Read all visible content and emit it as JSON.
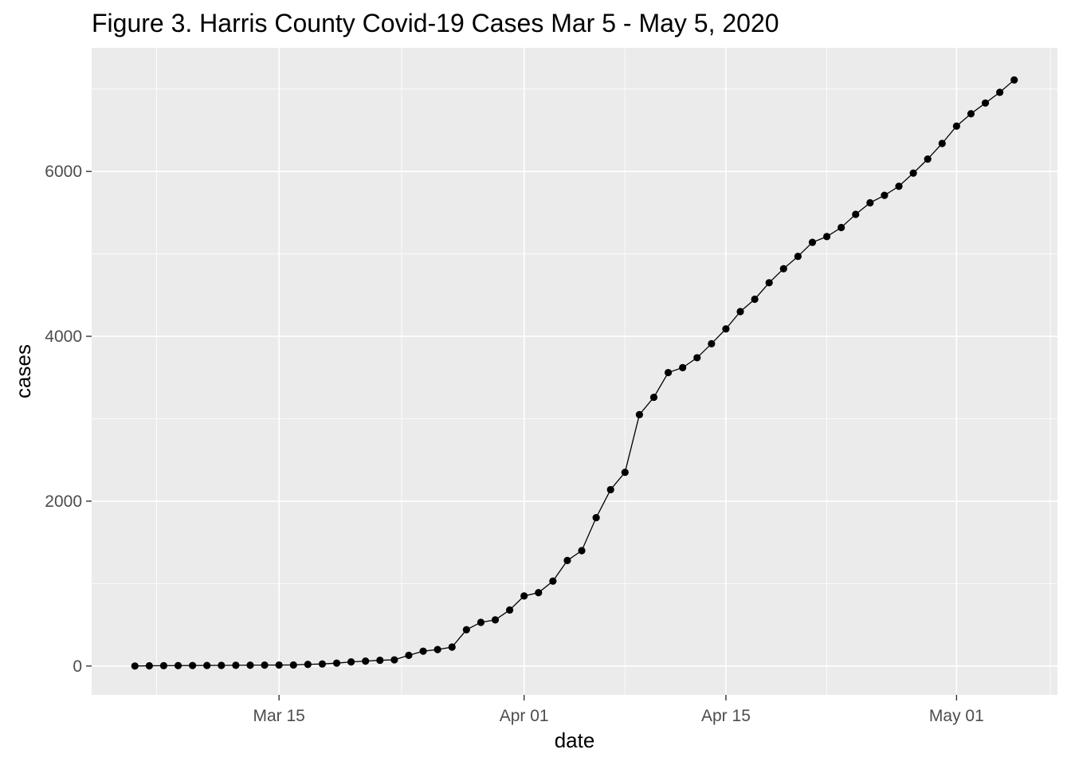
{
  "chart_data": {
    "type": "line",
    "title": "Figure 3. Harris County Covid-19 Cases Mar 5 - May 5, 2020",
    "xlabel": "date",
    "ylabel": "cases",
    "x_start_label": "2020-03-05",
    "x_tick_labels": [
      {
        "label": "Mar 15",
        "day": 10
      },
      {
        "label": "Apr 01",
        "day": 27
      },
      {
        "label": "Apr 15",
        "day": 41
      },
      {
        "label": "May 01",
        "day": 57
      }
    ],
    "x_minor_days": [
      1.5,
      18.5,
      34,
      48,
      63.5
    ],
    "xlim_days": [
      -3,
      64
    ],
    "y_ticks": [
      0,
      2000,
      4000,
      6000
    ],
    "y_minor": [
      1000,
      3000,
      5000,
      7000
    ],
    "ylim": [
      -350,
      7500
    ],
    "grid": true,
    "series": [
      {
        "name": "cases",
        "values": [
          0,
          3,
          4,
          5,
          6,
          7,
          8,
          9,
          10,
          11,
          12,
          13,
          20,
          25,
          35,
          50,
          60,
          70,
          75,
          130,
          180,
          200,
          230,
          440,
          530,
          560,
          680,
          850,
          890,
          1030,
          1280,
          1400,
          1800,
          2140,
          2350,
          3050,
          3260,
          3560,
          3620,
          3740,
          3910,
          4090,
          4300,
          4450,
          4650,
          4820,
          4970,
          5140,
          5210,
          5320,
          5480,
          5620,
          5710,
          5820,
          5980,
          6150,
          6340,
          6550,
          6700,
          6830,
          6960,
          7110
        ]
      }
    ]
  }
}
